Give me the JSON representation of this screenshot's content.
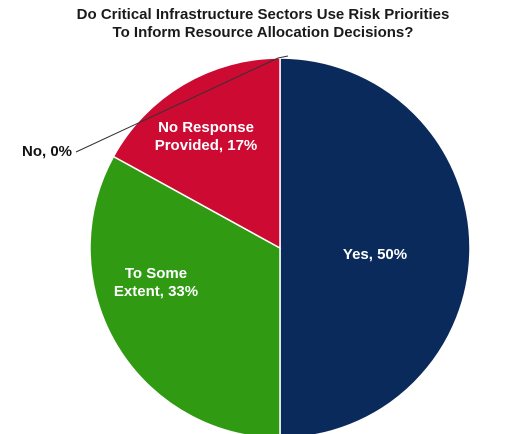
{
  "chart_data": {
    "type": "pie",
    "title_lines": [
      "Do Critical Infrastructure Sectors Use Risk Priorities",
      "To Inform Resource Allocation Decisions?"
    ],
    "slices": [
      {
        "label_lines": [
          "Yes, 50%"
        ],
        "value": 50,
        "color": "#0a2a5c",
        "text_color": "#ffffff"
      },
      {
        "label_lines": [
          "To Some",
          "Extent, 33%"
        ],
        "value": 33,
        "color": "#2f9a12",
        "text_color": "#ffffff"
      },
      {
        "label_lines": [
          "No Response",
          "Provided, 17%"
        ],
        "value": 17,
        "color": "#cc0a32",
        "text_color": "#ffffff"
      },
      {
        "label_lines": [
          "No, 0%"
        ],
        "value": 0,
        "color": "#555555",
        "text_color": "#111111",
        "outside": true
      }
    ],
    "start": "12 o'clock",
    "direction": "clockwise"
  }
}
